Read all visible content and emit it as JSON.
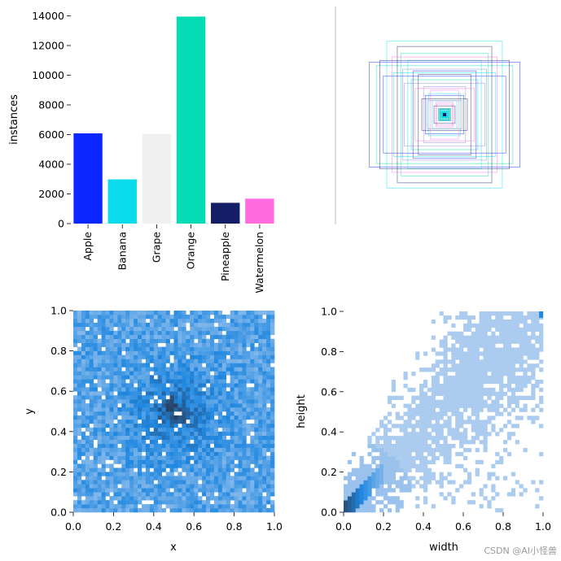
{
  "chart_data": [
    {
      "id": "class-bar",
      "type": "bar",
      "ylabel": "instances",
      "categories": [
        "Apple",
        "Banana",
        "Grape",
        "Orange",
        "Pineapple",
        "Watermelon"
      ],
      "values": [
        6080,
        2980,
        6040,
        13950,
        1400,
        1680
      ],
      "colors": [
        "#0a27ff",
        "#0bdcec",
        "#f0f0f0",
        "#02dbb4",
        "#131e66",
        "#ff6be1"
      ],
      "yticks": [
        0,
        2000,
        4000,
        6000,
        8000,
        10000,
        12000,
        14000
      ],
      "ytick_labels": [
        "0",
        "2000",
        "4000",
        "6000",
        "8000",
        "10000",
        "12000",
        "14000"
      ],
      "ylim": [
        0,
        14600
      ]
    },
    {
      "id": "box-overlay",
      "type": "scatter",
      "description_free": true,
      "palette": [
        "#0a27ff",
        "#0bdcec",
        "#02dbb4",
        "#131e66",
        "#ff6be1",
        "#8a7fe0"
      ],
      "box_sizes": [
        [
          0.86,
          0.6
        ],
        [
          0.66,
          0.84
        ],
        [
          0.78,
          0.56
        ],
        [
          0.54,
          0.78
        ],
        [
          0.6,
          0.66
        ],
        [
          0.48,
          0.52
        ],
        [
          0.7,
          0.44
        ],
        [
          0.42,
          0.62
        ],
        [
          0.38,
          0.4
        ],
        [
          0.3,
          0.46
        ],
        [
          0.34,
          0.3
        ],
        [
          0.24,
          0.32
        ],
        [
          0.22,
          0.22
        ],
        [
          0.18,
          0.24
        ],
        [
          0.14,
          0.16
        ],
        [
          0.12,
          0.1
        ],
        [
          0.09,
          0.12
        ],
        [
          0.07,
          0.07
        ],
        [
          0.05,
          0.06
        ],
        [
          0.04,
          0.04
        ],
        [
          0.03,
          0.03
        ],
        [
          0.26,
          0.18
        ],
        [
          0.16,
          0.28
        ],
        [
          0.46,
          0.36
        ],
        [
          0.36,
          0.5
        ],
        [
          0.58,
          0.48
        ],
        [
          0.5,
          0.7
        ],
        [
          0.74,
          0.62
        ],
        [
          0.1,
          0.14
        ],
        [
          0.2,
          0.16
        ]
      ]
    },
    {
      "id": "xy-hist",
      "type": "heatmap",
      "xlabel": "x",
      "ylabel": "y",
      "xlim": [
        0.0,
        1.0
      ],
      "ylim": [
        0.0,
        1.0
      ],
      "xticks": [
        "0.0",
        "0.2",
        "0.4",
        "0.6",
        "0.8",
        "1.0"
      ],
      "yticks": [
        "0.0",
        "0.2",
        "0.4",
        "0.6",
        "0.8",
        "1.0"
      ],
      "bins": 50,
      "center": [
        0.5,
        0.5
      ]
    },
    {
      "id": "wh-hist",
      "type": "heatmap",
      "xlabel": "width",
      "ylabel": "height",
      "xlim": [
        0.0,
        1.0
      ],
      "ylim": [
        0.0,
        1.0
      ],
      "xticks": [
        "0.0",
        "0.2",
        "0.4",
        "0.6",
        "0.8",
        "1.0"
      ],
      "yticks": [
        "0.0",
        "0.2",
        "0.4",
        "0.6",
        "0.8",
        "1.0"
      ],
      "bins": 50
    }
  ],
  "watermark": "CSDN @AI小怪兽"
}
